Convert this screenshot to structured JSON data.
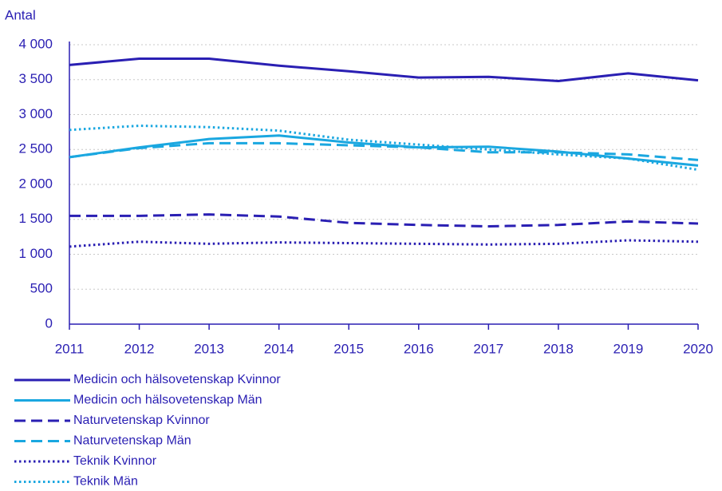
{
  "chart_data": {
    "type": "line",
    "ylabel": "Antal",
    "x": [
      2011,
      2012,
      2013,
      2014,
      2015,
      2016,
      2017,
      2018,
      2019,
      2020
    ],
    "xlim": [
      2011,
      2020
    ],
    "xticks": [
      2011,
      2012,
      2013,
      2014,
      2015,
      2016,
      2017,
      2018,
      2019,
      2020
    ],
    "ylim": [
      0,
      4000
    ],
    "yticks": [
      0,
      500,
      {
        "value": 1000,
        "label": "1 000"
      },
      {
        "value": 1500,
        "label": "1 500"
      },
      {
        "value": 2000,
        "label": "2 000"
      },
      {
        "value": 2500,
        "label": "2 500"
      },
      {
        "value": 3000,
        "label": "3 000"
      },
      {
        "value": 3500,
        "label": "3 500"
      },
      {
        "value": 4000,
        "label": "4 000"
      }
    ],
    "grid": true,
    "legend": "bottom",
    "series": [
      {
        "name": "Medicin och hälsovetenskap Kvinnor",
        "color": "#2a1fb3",
        "style": "solid",
        "values": [
          3710,
          3800,
          3800,
          3700,
          3620,
          3530,
          3540,
          3480,
          3590,
          3490
        ]
      },
      {
        "name": "Medicin och hälsovetenskap Män",
        "color": "#1aa7e0",
        "style": "solid",
        "values": [
          2390,
          2530,
          2650,
          2700,
          2600,
          2530,
          2540,
          2470,
          2370,
          2270
        ]
      },
      {
        "name": "Naturvetenskap Kvinnor",
        "color": "#2a1fb3",
        "style": "dashed",
        "values": [
          1550,
          1550,
          1570,
          1540,
          1450,
          1420,
          1400,
          1420,
          1470,
          1440
        ]
      },
      {
        "name": "Naturvetenskap Män",
        "color": "#1aa7e0",
        "style": "dashed",
        "values": [
          2390,
          2520,
          2590,
          2590,
          2560,
          2530,
          2460,
          2460,
          2430,
          2350
        ]
      },
      {
        "name": "Teknik Kvinnor",
        "color": "#2a1fb3",
        "style": "dotted",
        "values": [
          1110,
          1180,
          1150,
          1170,
          1160,
          1150,
          1140,
          1150,
          1200,
          1180
        ]
      },
      {
        "name": "Teknik Män",
        "color": "#1aa7e0",
        "style": "dotted",
        "values": [
          2780,
          2840,
          2820,
          2770,
          2640,
          2570,
          2500,
          2430,
          2370,
          2210
        ]
      }
    ]
  }
}
